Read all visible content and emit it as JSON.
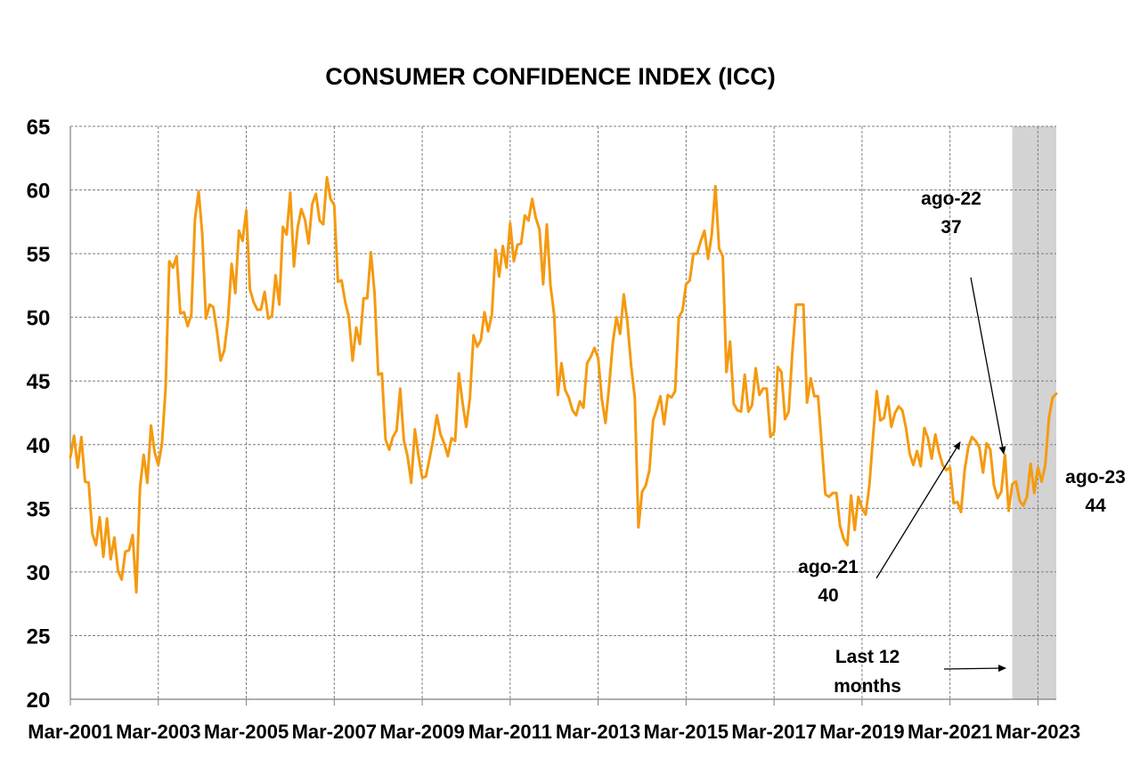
{
  "chart_data": {
    "type": "line",
    "title": "CONSUMER CONFIDENCE INDEX (ICC)",
    "xlabel": "",
    "ylabel": "",
    "ylim": [
      20,
      65
    ],
    "yticks": [
      20,
      25,
      30,
      35,
      40,
      45,
      50,
      55,
      60,
      65
    ],
    "xticks": [
      "Mar-2001",
      "Mar-2003",
      "Mar-2005",
      "Mar-2007",
      "Mar-2009",
      "Mar-2011",
      "Mar-2013",
      "Mar-2015",
      "Mar-2017",
      "Mar-2019",
      "Mar-2021",
      "Mar-2023"
    ],
    "xrange": [
      "2001-03",
      "2023-08"
    ],
    "grid": true,
    "line_color": "#F59A10",
    "shade_color": "#D3D3D3",
    "shaded_region": {
      "from": "2022-08",
      "to": "2023-08",
      "label": "Last 12 months"
    },
    "series": [
      {
        "points": [
          [
            "2001-03",
            39.0
          ],
          [
            "2001-04",
            40.7
          ],
          [
            "2001-05",
            38.2
          ],
          [
            "2001-06",
            40.6
          ],
          [
            "2001-07",
            37.1
          ],
          [
            "2001-08",
            37.0
          ],
          [
            "2001-09",
            33.0
          ],
          [
            "2001-10",
            32.1
          ],
          [
            "2001-11",
            34.3
          ],
          [
            "2001-12",
            31.2
          ],
          [
            "2002-01",
            34.2
          ],
          [
            "2002-02",
            31.0
          ],
          [
            "2002-03",
            32.7
          ],
          [
            "2002-04",
            30.1
          ],
          [
            "2002-05",
            29.4
          ],
          [
            "2002-06",
            31.6
          ],
          [
            "2002-07",
            31.7
          ],
          [
            "2002-08",
            32.9
          ],
          [
            "2002-09",
            28.4
          ],
          [
            "2002-10",
            36.6
          ],
          [
            "2002-11",
            39.2
          ],
          [
            "2002-12",
            37.0
          ],
          [
            "2003-01",
            41.5
          ],
          [
            "2003-02",
            39.4
          ],
          [
            "2003-03",
            38.4
          ],
          [
            "2003-04",
            40.1
          ],
          [
            "2003-05",
            44.5
          ],
          [
            "2003-06",
            54.4
          ],
          [
            "2003-07",
            53.9
          ],
          [
            "2003-08",
            54.8
          ],
          [
            "2003-09",
            50.3
          ],
          [
            "2003-10",
            50.4
          ],
          [
            "2003-11",
            49.3
          ],
          [
            "2003-12",
            50.2
          ],
          [
            "2004-01",
            57.7
          ],
          [
            "2004-02",
            59.9
          ],
          [
            "2004-03",
            56.5
          ],
          [
            "2004-04",
            49.9
          ],
          [
            "2004-05",
            51.0
          ],
          [
            "2004-06",
            50.8
          ],
          [
            "2004-07",
            48.9
          ],
          [
            "2004-08",
            46.6
          ],
          [
            "2004-09",
            47.4
          ],
          [
            "2004-10",
            49.8
          ],
          [
            "2004-11",
            54.2
          ],
          [
            "2004-12",
            51.9
          ],
          [
            "2005-01",
            56.8
          ],
          [
            "2005-02",
            56.0
          ],
          [
            "2005-03",
            58.4
          ],
          [
            "2005-04",
            52.2
          ],
          [
            "2005-05",
            51.2
          ],
          [
            "2005-06",
            50.6
          ],
          [
            "2005-07",
            50.6
          ],
          [
            "2005-08",
            52.0
          ],
          [
            "2005-09",
            49.9
          ],
          [
            "2005-10",
            50.1
          ],
          [
            "2005-11",
            53.3
          ],
          [
            "2005-12",
            51.0
          ],
          [
            "2006-01",
            57.1
          ],
          [
            "2006-02",
            56.5
          ],
          [
            "2006-03",
            59.8
          ],
          [
            "2006-04",
            54.0
          ],
          [
            "2006-05",
            57.0
          ],
          [
            "2006-06",
            58.5
          ],
          [
            "2006-07",
            57.7
          ],
          [
            "2006-08",
            55.8
          ],
          [
            "2006-09",
            58.9
          ],
          [
            "2006-10",
            59.7
          ],
          [
            "2006-11",
            57.6
          ],
          [
            "2006-12",
            57.3
          ],
          [
            "2007-01",
            61.0
          ],
          [
            "2007-02",
            59.3
          ],
          [
            "2007-03",
            58.8
          ],
          [
            "2007-04",
            52.8
          ],
          [
            "2007-05",
            52.9
          ],
          [
            "2007-06",
            51.2
          ],
          [
            "2007-07",
            50.0
          ],
          [
            "2007-08",
            46.6
          ],
          [
            "2007-09",
            49.2
          ],
          [
            "2007-10",
            47.9
          ],
          [
            "2007-11",
            51.5
          ],
          [
            "2007-12",
            51.5
          ],
          [
            "2008-01",
            55.1
          ],
          [
            "2008-02",
            51.9
          ],
          [
            "2008-03",
            45.5
          ],
          [
            "2008-04",
            45.6
          ],
          [
            "2008-05",
            40.4
          ],
          [
            "2008-06",
            39.6
          ],
          [
            "2008-07",
            40.6
          ],
          [
            "2008-08",
            41.1
          ],
          [
            "2008-09",
            44.4
          ],
          [
            "2008-10",
            40.3
          ],
          [
            "2008-11",
            39.1
          ],
          [
            "2008-12",
            37.0
          ],
          [
            "2009-01",
            41.2
          ],
          [
            "2009-02",
            39.1
          ],
          [
            "2009-03",
            37.4
          ],
          [
            "2009-04",
            37.5
          ],
          [
            "2009-05",
            38.9
          ],
          [
            "2009-06",
            40.4
          ],
          [
            "2009-07",
            42.3
          ],
          [
            "2009-08",
            40.8
          ],
          [
            "2009-09",
            40.1
          ],
          [
            "2009-10",
            39.1
          ],
          [
            "2009-11",
            40.5
          ],
          [
            "2009-12",
            40.3
          ],
          [
            "2010-01",
            45.6
          ],
          [
            "2010-02",
            43.3
          ],
          [
            "2010-03",
            41.4
          ],
          [
            "2010-04",
            43.6
          ],
          [
            "2010-05",
            48.6
          ],
          [
            "2010-06",
            47.7
          ],
          [
            "2010-07",
            48.2
          ],
          [
            "2010-08",
            50.4
          ],
          [
            "2010-09",
            48.9
          ],
          [
            "2010-10",
            50.2
          ],
          [
            "2010-11",
            55.3
          ],
          [
            "2010-12",
            53.2
          ],
          [
            "2011-01",
            55.6
          ],
          [
            "2011-02",
            53.9
          ],
          [
            "2011-03",
            57.4
          ],
          [
            "2011-04",
            54.4
          ],
          [
            "2011-05",
            55.7
          ],
          [
            "2011-06",
            55.8
          ],
          [
            "2011-07",
            58.0
          ],
          [
            "2011-08",
            57.6
          ],
          [
            "2011-09",
            59.3
          ],
          [
            "2011-10",
            57.8
          ],
          [
            "2011-11",
            56.9
          ],
          [
            "2011-12",
            52.6
          ],
          [
            "2012-01",
            57.3
          ],
          [
            "2012-02",
            52.5
          ],
          [
            "2012-03",
            50.2
          ],
          [
            "2012-04",
            43.9
          ],
          [
            "2012-05",
            46.4
          ],
          [
            "2012-06",
            44.3
          ],
          [
            "2012-07",
            43.7
          ],
          [
            "2012-08",
            42.7
          ],
          [
            "2012-09",
            42.3
          ],
          [
            "2012-10",
            43.4
          ],
          [
            "2012-11",
            42.9
          ],
          [
            "2012-12",
            46.4
          ],
          [
            "2013-01",
            46.9
          ],
          [
            "2013-02",
            47.6
          ],
          [
            "2013-03",
            46.8
          ],
          [
            "2013-04",
            43.6
          ],
          [
            "2013-05",
            41.7
          ],
          [
            "2013-06",
            44.6
          ],
          [
            "2013-07",
            48.0
          ],
          [
            "2013-08",
            50.0
          ],
          [
            "2013-09",
            48.7
          ],
          [
            "2013-10",
            51.8
          ],
          [
            "2013-11",
            49.6
          ],
          [
            "2013-12",
            46.2
          ],
          [
            "2014-01",
            43.7
          ],
          [
            "2014-02",
            33.5
          ],
          [
            "2014-03",
            36.3
          ],
          [
            "2014-04",
            36.8
          ],
          [
            "2014-05",
            38.0
          ],
          [
            "2014-06",
            41.9
          ],
          [
            "2014-07",
            42.8
          ],
          [
            "2014-08",
            43.8
          ],
          [
            "2014-09",
            41.6
          ],
          [
            "2014-10",
            43.9
          ],
          [
            "2014-11",
            43.7
          ],
          [
            "2014-12",
            44.2
          ],
          [
            "2015-01",
            50.0
          ],
          [
            "2015-02",
            50.5
          ],
          [
            "2015-03",
            52.6
          ],
          [
            "2015-04",
            52.9
          ],
          [
            "2015-05",
            55.0
          ],
          [
            "2015-06",
            55.0
          ],
          [
            "2015-07",
            56.0
          ],
          [
            "2015-08",
            56.8
          ],
          [
            "2015-09",
            54.6
          ],
          [
            "2015-10",
            56.5
          ],
          [
            "2015-11",
            60.3
          ],
          [
            "2015-12",
            55.4
          ],
          [
            "2016-01",
            54.8
          ],
          [
            "2016-02",
            45.7
          ],
          [
            "2016-03",
            48.1
          ],
          [
            "2016-04",
            43.2
          ],
          [
            "2016-05",
            42.7
          ],
          [
            "2016-06",
            42.6
          ],
          [
            "2016-07",
            45.5
          ],
          [
            "2016-08",
            42.6
          ],
          [
            "2016-09",
            43.1
          ],
          [
            "2016-10",
            46.0
          ],
          [
            "2016-11",
            43.9
          ],
          [
            "2016-12",
            44.4
          ],
          [
            "2017-01",
            44.4
          ],
          [
            "2017-02",
            40.6
          ],
          [
            "2017-03",
            41.0
          ],
          [
            "2017-04",
            46.1
          ],
          [
            "2017-05",
            45.7
          ],
          [
            "2017-06",
            42.0
          ],
          [
            "2017-07",
            42.6
          ],
          [
            "2017-08",
            47.3
          ],
          [
            "2017-09",
            51.0
          ],
          [
            "2017-10",
            51.0
          ],
          [
            "2017-11",
            51.0
          ],
          [
            "2017-12",
            43.3
          ],
          [
            "2018-01",
            45.2
          ],
          [
            "2018-02",
            43.8
          ],
          [
            "2018-03",
            43.8
          ],
          [
            "2018-04",
            40.0
          ],
          [
            "2018-05",
            36.1
          ],
          [
            "2018-06",
            35.9
          ],
          [
            "2018-07",
            36.2
          ],
          [
            "2018-08",
            36.2
          ],
          [
            "2018-09",
            33.6
          ],
          [
            "2018-10",
            32.6
          ],
          [
            "2018-11",
            32.1
          ],
          [
            "2018-12",
            36.0
          ],
          [
            "2019-01",
            33.3
          ],
          [
            "2019-02",
            35.9
          ],
          [
            "2019-03",
            35.0
          ],
          [
            "2019-04",
            34.5
          ],
          [
            "2019-05",
            36.8
          ],
          [
            "2019-06",
            40.6
          ],
          [
            "2019-07",
            44.2
          ],
          [
            "2019-08",
            41.9
          ],
          [
            "2019-09",
            42.1
          ],
          [
            "2019-10",
            43.8
          ],
          [
            "2019-11",
            41.4
          ],
          [
            "2019-12",
            42.5
          ],
          [
            "2020-01",
            43.0
          ],
          [
            "2020-02",
            42.7
          ],
          [
            "2020-03",
            41.3
          ],
          [
            "2020-04",
            39.3
          ],
          [
            "2020-05",
            38.4
          ],
          [
            "2020-06",
            39.5
          ],
          [
            "2020-07",
            38.3
          ],
          [
            "2020-08",
            41.3
          ],
          [
            "2020-09",
            40.5
          ],
          [
            "2020-10",
            38.9
          ],
          [
            "2020-11",
            40.8
          ],
          [
            "2020-12",
            39.4
          ],
          [
            "2021-01",
            38.4
          ],
          [
            "2021-02",
            38.0
          ],
          [
            "2021-03",
            38.2
          ],
          [
            "2021-04",
            35.4
          ],
          [
            "2021-05",
            35.5
          ],
          [
            "2021-06",
            34.7
          ],
          [
            "2021-07",
            38.0
          ],
          [
            "2021-08",
            39.8
          ],
          [
            "2021-09",
            40.6
          ],
          [
            "2021-10",
            40.3
          ],
          [
            "2021-11",
            39.8
          ],
          [
            "2021-12",
            37.8
          ],
          [
            "2022-01",
            40.1
          ],
          [
            "2022-02",
            39.6
          ],
          [
            "2022-03",
            36.8
          ],
          [
            "2022-04",
            35.8
          ],
          [
            "2022-05",
            36.3
          ],
          [
            "2022-06",
            39.2
          ],
          [
            "2022-07",
            34.8
          ],
          [
            "2022-08",
            36.9
          ],
          [
            "2022-09",
            37.1
          ],
          [
            "2022-10",
            35.6
          ],
          [
            "2022-11",
            35.2
          ],
          [
            "2022-12",
            35.9
          ],
          [
            "2023-01",
            38.5
          ],
          [
            "2023-02",
            36.2
          ],
          [
            "2023-03",
            38.2
          ],
          [
            "2023-04",
            37.1
          ],
          [
            "2023-05",
            38.4
          ],
          [
            "2023-06",
            42.1
          ],
          [
            "2023-07",
            43.7
          ],
          [
            "2023-08",
            44.0
          ]
        ]
      }
    ],
    "annotations": [
      {
        "line1": "ago-22",
        "line2": "37"
      },
      {
        "line1": "ago-21",
        "line2": "40"
      },
      {
        "line1": "ago-23",
        "line2": "44"
      },
      {
        "line1": "Last 12",
        "line2": "months"
      }
    ]
  }
}
